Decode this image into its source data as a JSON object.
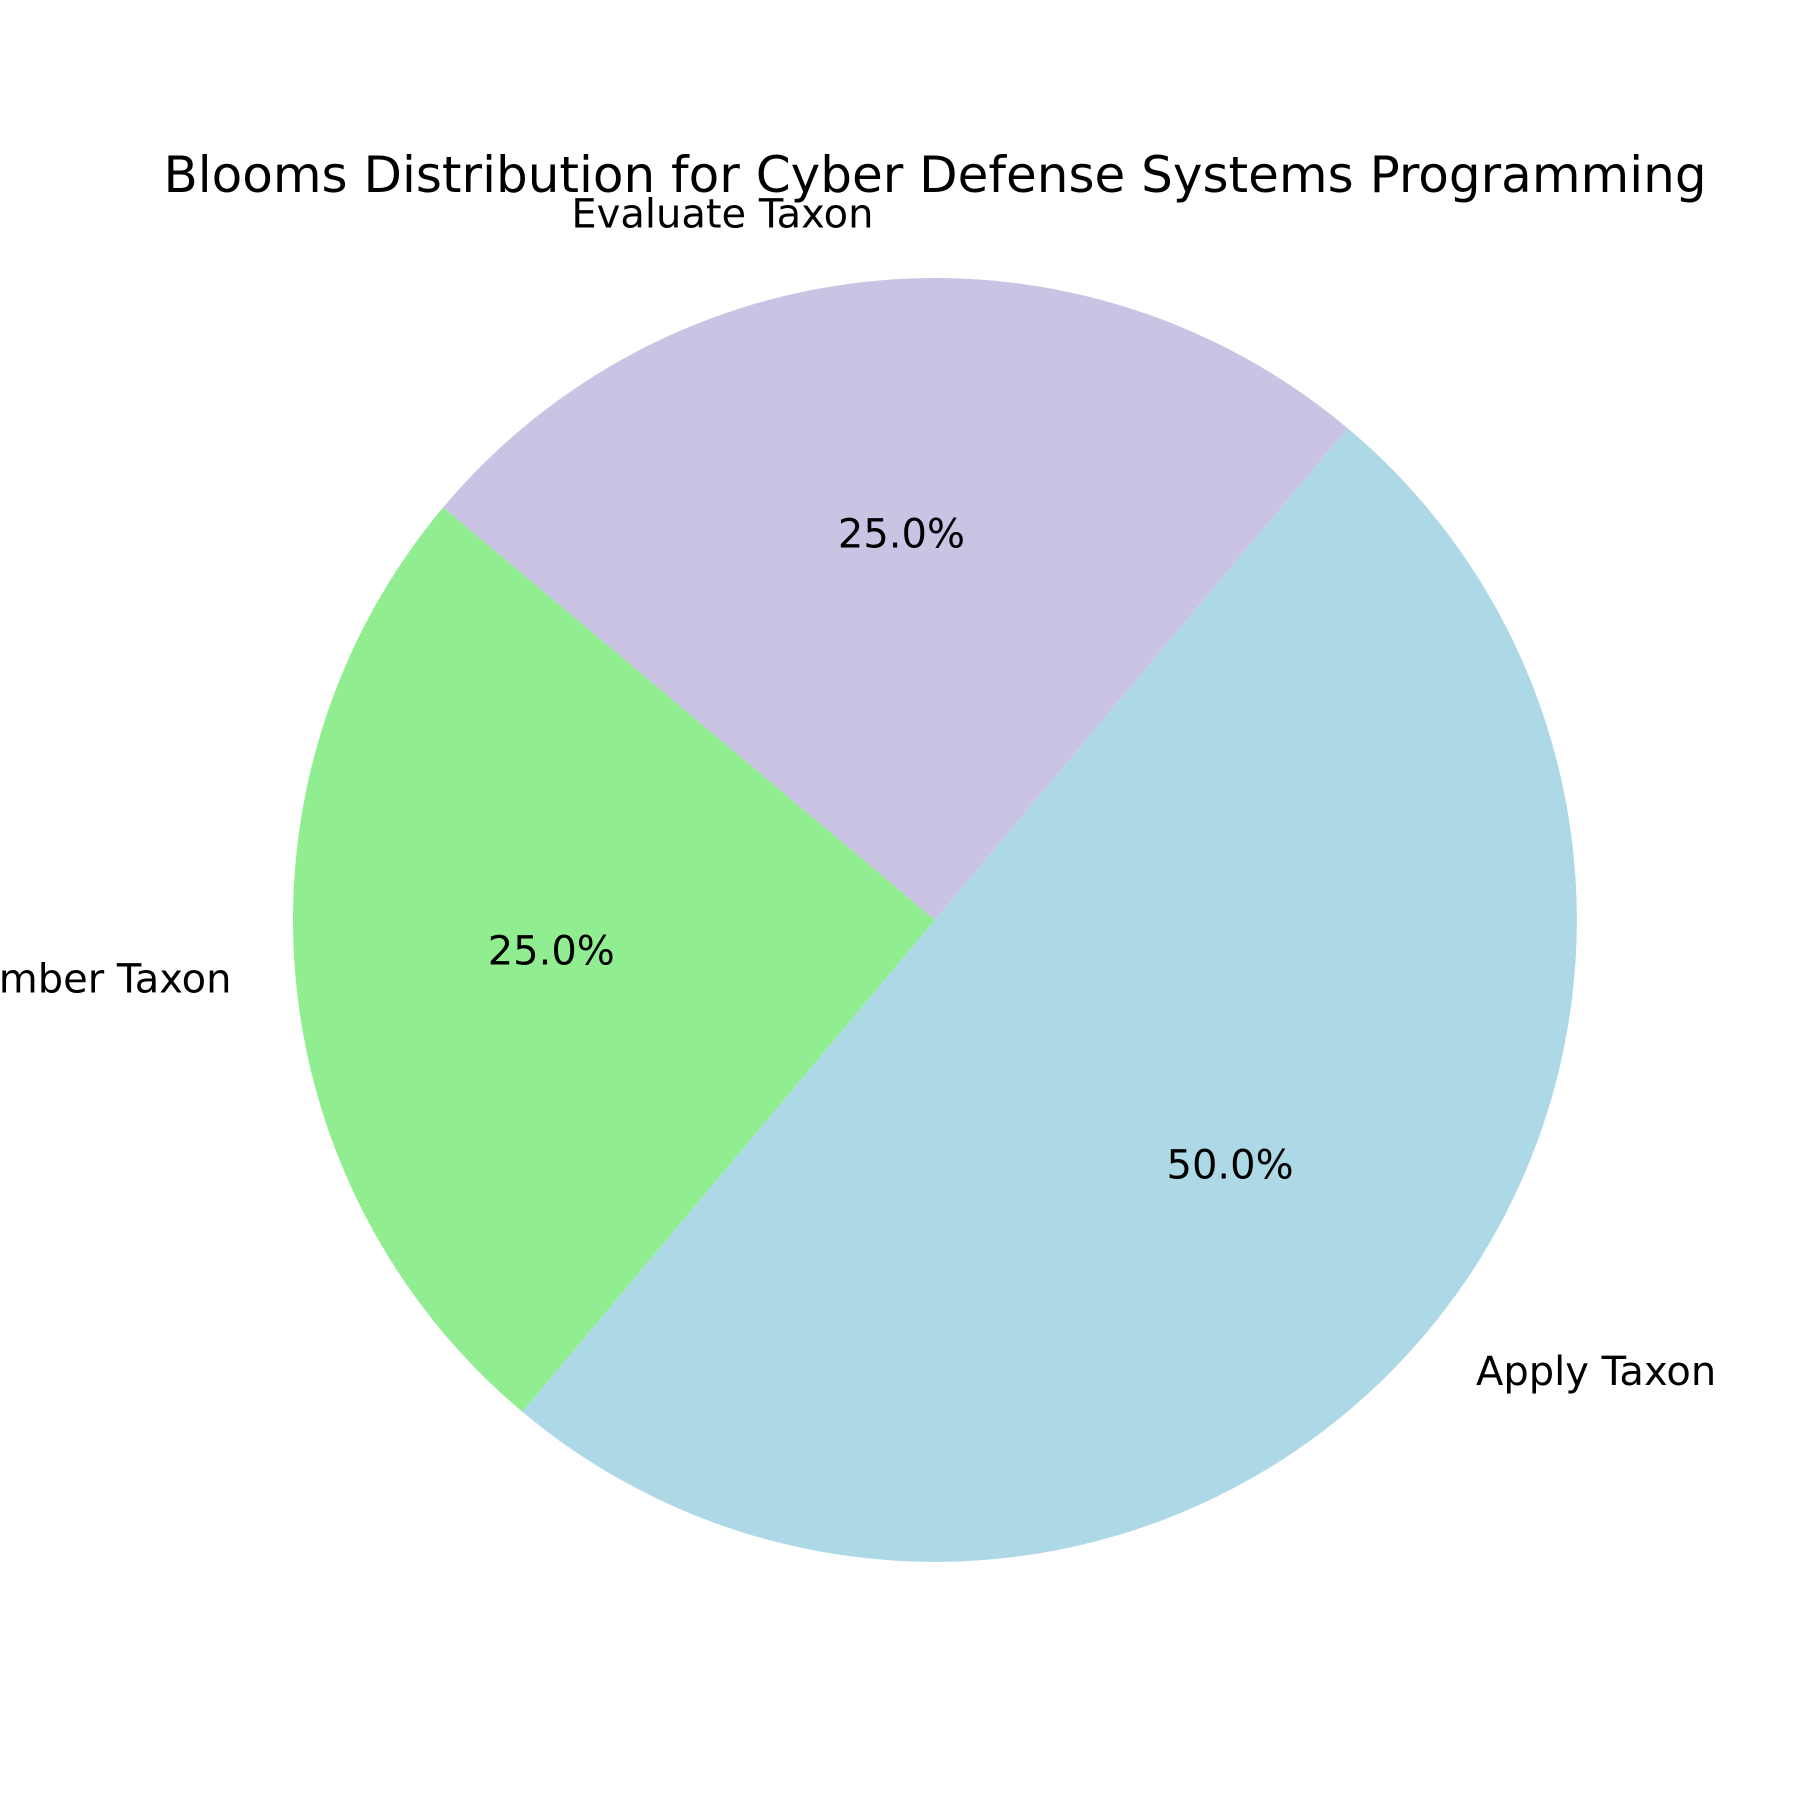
{
  "chart_data": {
    "type": "pie",
    "title": "Blooms Distribution for Cyber Defense Systems Programming",
    "start_angle_deg": 140,
    "direction": "counterclockwise",
    "slices": [
      {
        "label": "Remember Taxon",
        "value": 25.0,
        "percent_label": "25.0%",
        "color": "#90ee90"
      },
      {
        "label": "Apply Taxon",
        "value": 50.0,
        "percent_label": "50.0%",
        "color": "#add8e6"
      },
      {
        "label": "Evaluate Taxon",
        "value": 25.0,
        "percent_label": "25.0%",
        "color": "#cbc3e3"
      }
    ]
  }
}
